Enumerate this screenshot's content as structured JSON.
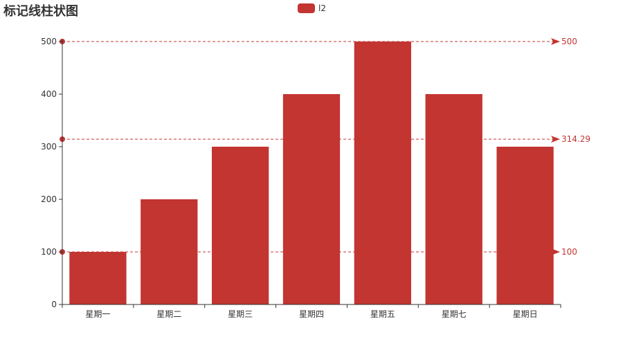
{
  "title": "标记线柱状图",
  "colors": {
    "series": "#c23531",
    "axis": "#333333",
    "tick_text": "#333333"
  },
  "chart_data": {
    "type": "bar",
    "title": "标记线柱状图",
    "categories": [
      "星期一",
      "星期二",
      "星期三",
      "星期四",
      "星期五",
      "星期七",
      "星期日"
    ],
    "series": [
      {
        "name": "l2",
        "values": [
          100,
          200,
          300,
          400,
          500,
          400,
          300
        ]
      }
    ],
    "ylim": [
      0,
      500
    ],
    "yticks": [
      0,
      100,
      200,
      300,
      400,
      500
    ],
    "grid": false,
    "legend": "top-center",
    "mark_lines": [
      {
        "type": "max",
        "value": 500,
        "label": "500"
      },
      {
        "type": "average",
        "value": 314.29,
        "label": "314.29"
      },
      {
        "type": "min",
        "value": 100,
        "label": "100"
      }
    ]
  }
}
